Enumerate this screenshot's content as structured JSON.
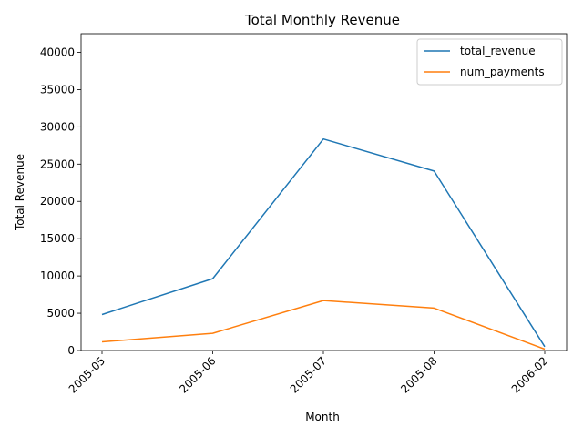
{
  "chart_data": {
    "type": "line",
    "title": "Total Monthly Revenue",
    "xlabel": "Month",
    "ylabel": "Total Revenue",
    "categories": [
      "2005-05",
      "2005-06",
      "2005-07",
      "2005-08",
      "2006-02"
    ],
    "ylim": [
      0,
      42500
    ],
    "yticks": [
      0,
      5000,
      10000,
      15000,
      20000,
      25000,
      30000,
      35000,
      40000
    ],
    "ytick_labels": [
      "0",
      "5000",
      "10000",
      "15000",
      "20000",
      "25000",
      "30000",
      "35000",
      "40000"
    ],
    "grid": false,
    "legend": "top-right",
    "series": [
      {
        "name": "total_revenue",
        "color": "#1f77b4",
        "values": [
          4824,
          9631,
          28373,
          24072,
          514
        ]
      },
      {
        "name": "num_payments",
        "color": "#ff7f0e",
        "values": [
          1156,
          2311,
          6709,
          5686,
          182
        ]
      }
    ]
  }
}
